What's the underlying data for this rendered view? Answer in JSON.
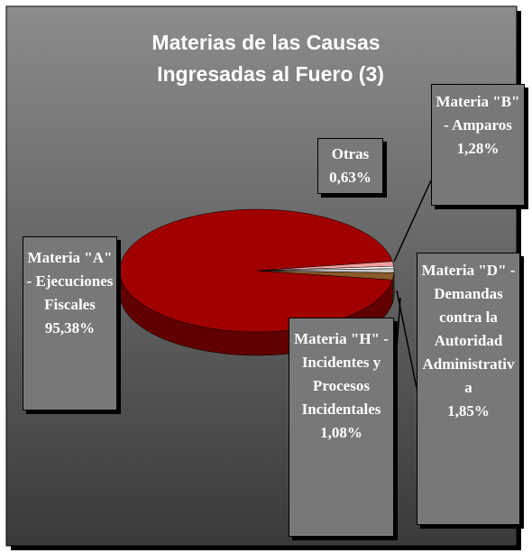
{
  "chart_data": {
    "type": "pie3d",
    "title": [
      "Materias de las Causas",
      "Ingresadas al Fuero    (3)"
    ],
    "categories": [
      "Materia \"A\" - Ejecuciones Fiscales",
      "Materia \"B\" - Amparos",
      "Otras",
      "Materia \"H\" - Incidentes y Procesos Incidentales",
      "Materia \"D\" - Demandas contra la Autoridad Administrativa"
    ],
    "values": [
      95.38,
      1.28,
      0.63,
      1.08,
      1.85
    ],
    "value_labels": [
      "95,38%",
      "1,28%",
      "0,63%",
      "1,08%",
      "1,85%"
    ],
    "colors": [
      "#a00000",
      "#f4a0a0",
      "#ffffff",
      "#c8c8c8",
      "#8a5a2a"
    ]
  }
}
